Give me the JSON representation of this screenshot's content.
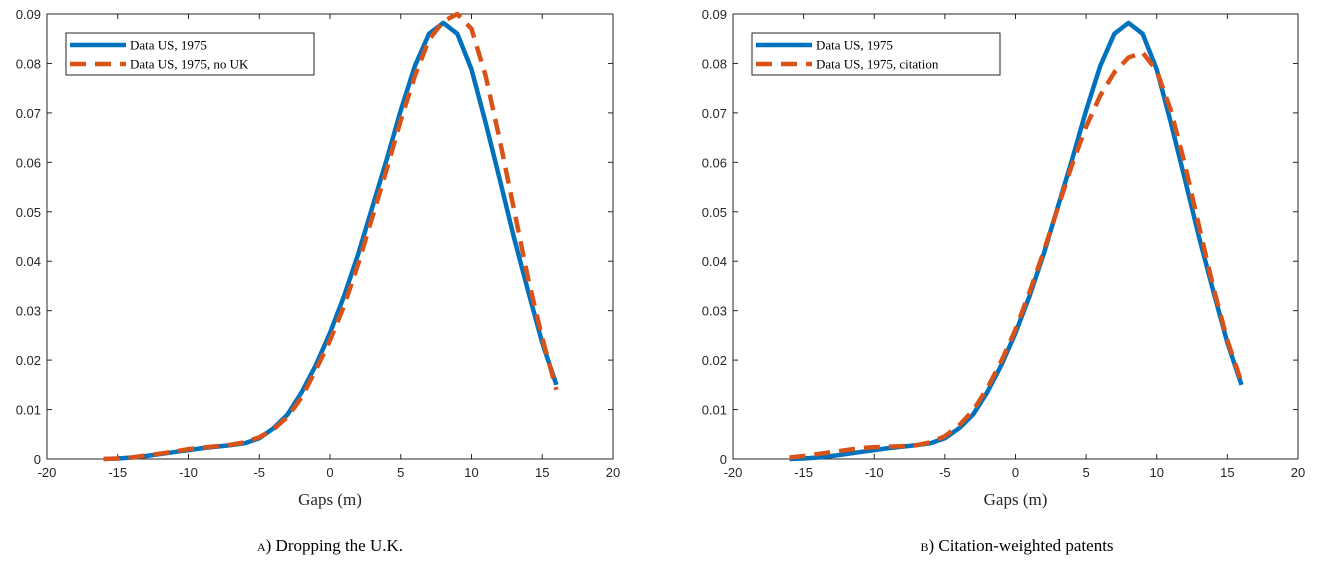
{
  "chart_data": [
    {
      "type": "line",
      "caption_label": "a)",
      "caption_text": " Dropping the U.K.",
      "xlabel": "Gaps (m)",
      "ylabel": "",
      "xlim": [
        -20,
        20
      ],
      "ylim": [
        0,
        0.09
      ],
      "xticks": [
        "-20",
        "-15",
        "-10",
        "-5",
        "0",
        "5",
        "10",
        "15",
        "20"
      ],
      "yticks": [
        "0",
        "0.01",
        "0.02",
        "0.03",
        "0.04",
        "0.05",
        "0.06",
        "0.07",
        "0.08",
        "0.09"
      ],
      "grid": false,
      "legend_position": "top-left",
      "series": [
        {
          "name": "Data US, 1975",
          "color": "#0072BD",
          "style": "solid",
          "x": [
            -16,
            -15,
            -14,
            -13,
            -12,
            -11,
            -10,
            -9,
            -8,
            -7,
            -6,
            -5,
            -4,
            -3,
            -2,
            -1,
            0,
            1,
            2,
            3,
            4,
            5,
            6,
            7,
            8,
            9,
            10,
            11,
            12,
            13,
            14,
            15,
            16
          ],
          "y": [
            0,
            0.0001,
            0.0003,
            0.0006,
            0.001,
            0.0014,
            0.0018,
            0.0022,
            0.0025,
            0.0028,
            0.0032,
            0.0042,
            0.0062,
            0.009,
            0.0135,
            0.019,
            0.0255,
            0.033,
            0.0415,
            0.051,
            0.0605,
            0.0705,
            0.0795,
            0.086,
            0.0882,
            0.086,
            0.0788,
            0.068,
            0.0565,
            0.0448,
            0.034,
            0.0235,
            0.015
          ]
        },
        {
          "name": "Data US, 1975, no UK",
          "color": "#D95319",
          "style": "dashed",
          "x": [
            -16,
            -15,
            -14,
            -13,
            -12,
            -11,
            -10,
            -9,
            -8,
            -7,
            -6,
            -5,
            -4,
            -3,
            -2,
            -1,
            0,
            1,
            2,
            3,
            4,
            5,
            6,
            7,
            8,
            9,
            10,
            11,
            12,
            13,
            14,
            15,
            16
          ],
          "y": [
            0,
            0.0001,
            0.0003,
            0.0007,
            0.0011,
            0.0015,
            0.002,
            0.0023,
            0.0026,
            0.0029,
            0.0034,
            0.0044,
            0.006,
            0.0085,
            0.0125,
            0.018,
            0.024,
            0.031,
            0.0395,
            0.049,
            0.0585,
            0.0685,
            0.0775,
            0.0848,
            0.0885,
            0.09,
            0.087,
            0.0775,
            0.0645,
            0.0505,
            0.0365,
            0.0245,
            0.014
          ]
        }
      ]
    },
    {
      "type": "line",
      "caption_label": "b)",
      "caption_text": " Citation-weighted patents",
      "xlabel": "Gaps (m)",
      "ylabel": "",
      "xlim": [
        -20,
        20
      ],
      "ylim": [
        0,
        0.09
      ],
      "xticks": [
        "-20",
        "-15",
        "-10",
        "-5",
        "0",
        "5",
        "10",
        "15",
        "20"
      ],
      "yticks": [
        "0",
        "0.01",
        "0.02",
        "0.03",
        "0.04",
        "0.05",
        "0.06",
        "0.07",
        "0.08",
        "0.09"
      ],
      "grid": false,
      "legend_position": "top-left",
      "series": [
        {
          "name": "Data US, 1975",
          "color": "#0072BD",
          "style": "solid",
          "x": [
            -16,
            -15,
            -14,
            -13,
            -12,
            -11,
            -10,
            -9,
            -8,
            -7,
            -6,
            -5,
            -4,
            -3,
            -2,
            -1,
            0,
            1,
            2,
            3,
            4,
            5,
            6,
            7,
            8,
            9,
            10,
            11,
            12,
            13,
            14,
            15,
            16
          ],
          "y": [
            0,
            0.0001,
            0.0003,
            0.0006,
            0.001,
            0.0014,
            0.0018,
            0.0022,
            0.0025,
            0.0028,
            0.0032,
            0.0042,
            0.0062,
            0.009,
            0.0135,
            0.019,
            0.0255,
            0.033,
            0.0415,
            0.051,
            0.0605,
            0.0705,
            0.0795,
            0.086,
            0.0882,
            0.086,
            0.0788,
            0.068,
            0.0565,
            0.0448,
            0.034,
            0.0235,
            0.015
          ]
        },
        {
          "name": "Data US, 1975, citation",
          "color": "#D95319",
          "style": "dashed",
          "x": [
            -16,
            -15,
            -14,
            -13,
            -12,
            -11,
            -10,
            -9,
            -8,
            -7,
            -6,
            -5,
            -4,
            -3,
            -2,
            -1,
            0,
            1,
            2,
            3,
            4,
            5,
            6,
            7,
            8,
            9,
            10,
            11,
            12,
            13,
            14,
            15,
            16
          ],
          "y": [
            0.0003,
            0.0006,
            0.001,
            0.0014,
            0.0018,
            0.0022,
            0.0024,
            0.0025,
            0.0026,
            0.0028,
            0.0034,
            0.0046,
            0.0068,
            0.0098,
            0.0143,
            0.0198,
            0.0262,
            0.0338,
            0.042,
            0.0508,
            0.0595,
            0.0672,
            0.0735,
            0.0782,
            0.0812,
            0.0822,
            0.0785,
            0.0705,
            0.0595,
            0.047,
            0.0348,
            0.024,
            0.0155
          ]
        }
      ]
    }
  ]
}
